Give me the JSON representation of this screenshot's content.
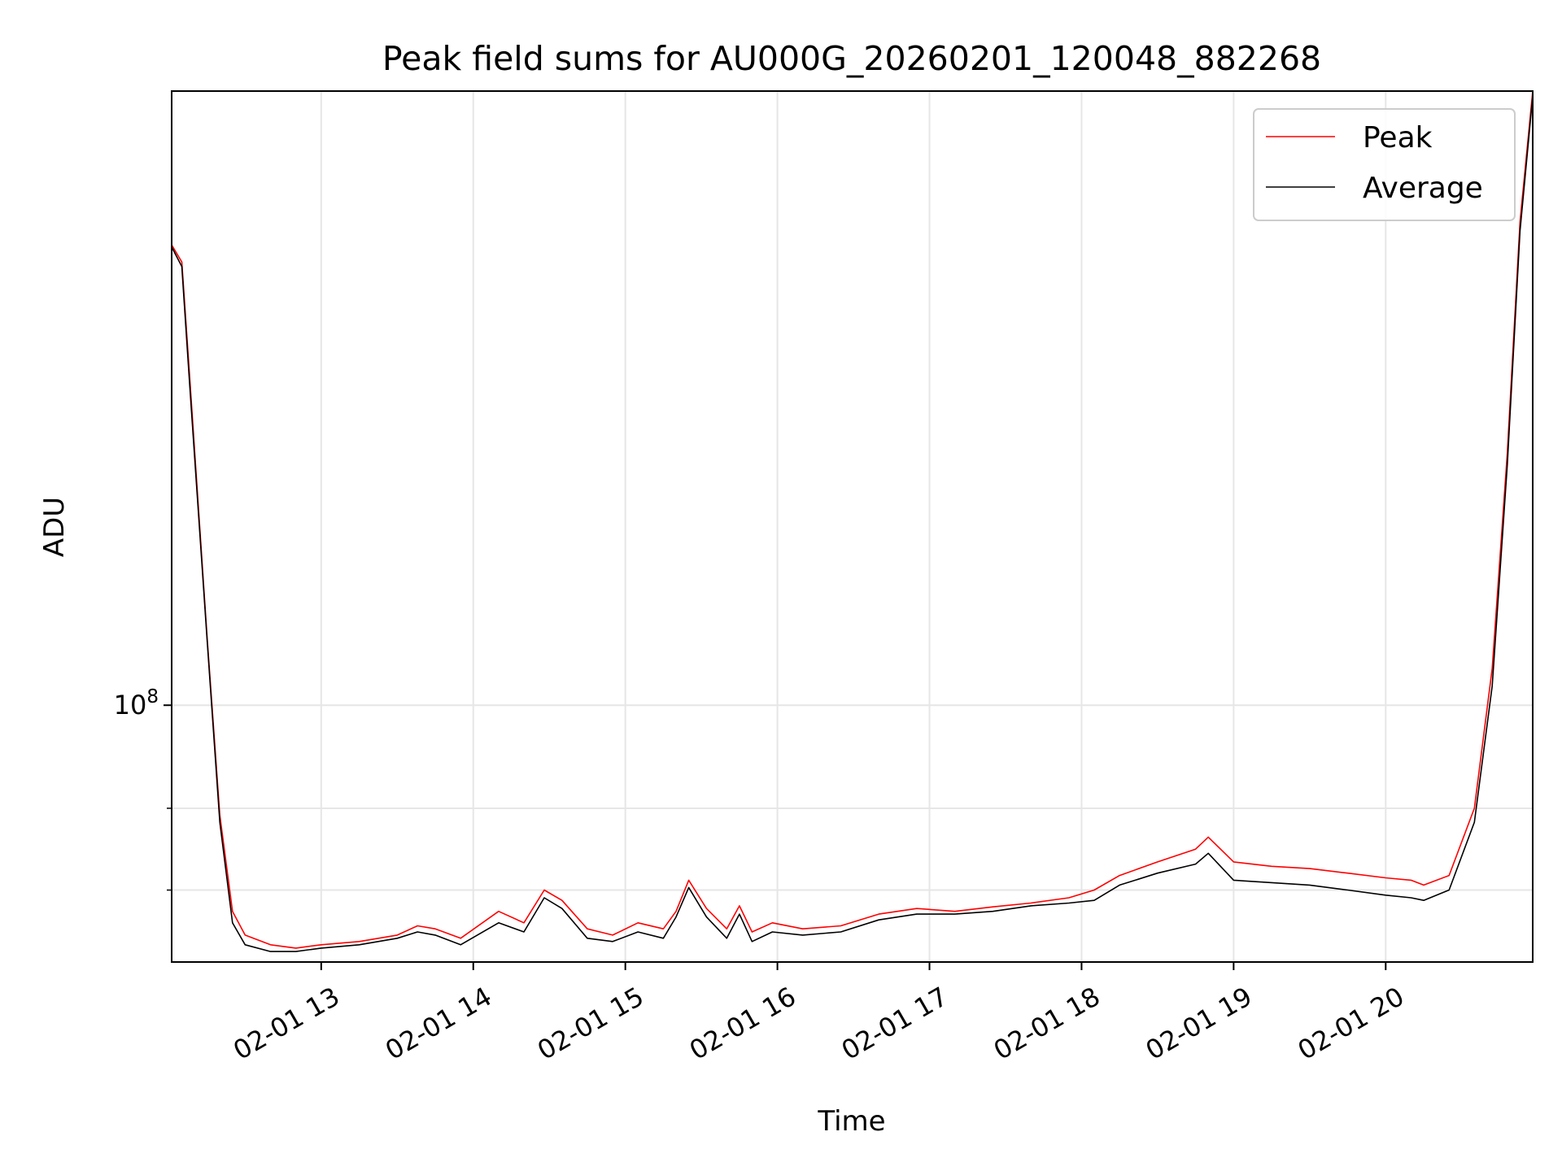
{
  "chart_data": {
    "type": "line",
    "title": "Peak field sums for AU000G_20260201_120048_882268",
    "xlabel": "Time",
    "ylabel": "ADU",
    "y_scale": "log",
    "y_major_tick": {
      "value": 100000000,
      "label_base": "10",
      "label_exp": "8"
    },
    "y_minor_ticks": [
      60000000,
      40000000
    ],
    "ylim": [
      28000000,
      2100000000
    ],
    "xlim": [
      "2026-02-01 12:01:00",
      "2026-02-01 20:58:00"
    ],
    "x_ticks": [
      {
        "time": "2026-02-01 13:00",
        "label": "02-01 13"
      },
      {
        "time": "2026-02-01 14:00",
        "label": "02-01 14"
      },
      {
        "time": "2026-02-01 15:00",
        "label": "02-01 15"
      },
      {
        "time": "2026-02-01 16:00",
        "label": "02-01 16"
      },
      {
        "time": "2026-02-01 17:00",
        "label": "02-01 17"
      },
      {
        "time": "2026-02-01 18:00",
        "label": "02-01 18"
      },
      {
        "time": "2026-02-01 19:00",
        "label": "02-01 19"
      },
      {
        "time": "2026-02-01 20:00",
        "label": "02-01 20"
      }
    ],
    "grid": true,
    "legend_position": "top-right",
    "series": [
      {
        "name": "Peak",
        "color": "#ff0000",
        "x": [
          "2026-02-01 12:01",
          "2026-02-01 12:05",
          "2026-02-01 12:08",
          "2026-02-01 12:15",
          "2026-02-01 12:20",
          "2026-02-01 12:25",
          "2026-02-01 12:30",
          "2026-02-01 12:40",
          "2026-02-01 12:50",
          "2026-02-01 13:00",
          "2026-02-01 13:15",
          "2026-02-01 13:30",
          "2026-02-01 13:38",
          "2026-02-01 13:45",
          "2026-02-01 13:55",
          "2026-02-01 14:10",
          "2026-02-01 14:20",
          "2026-02-01 14:28",
          "2026-02-01 14:35",
          "2026-02-01 14:45",
          "2026-02-01 14:55",
          "2026-02-01 15:05",
          "2026-02-01 15:15",
          "2026-02-01 15:20",
          "2026-02-01 15:25",
          "2026-02-01 15:32",
          "2026-02-01 15:40",
          "2026-02-01 15:45",
          "2026-02-01 15:50",
          "2026-02-01 15:58",
          "2026-02-01 16:10",
          "2026-02-01 16:25",
          "2026-02-01 16:40",
          "2026-02-01 16:55",
          "2026-02-01 17:10",
          "2026-02-01 17:25",
          "2026-02-01 17:40",
          "2026-02-01 17:55",
          "2026-02-01 18:05",
          "2026-02-01 18:15",
          "2026-02-01 18:30",
          "2026-02-01 18:45",
          "2026-02-01 18:50",
          "2026-02-01 19:00",
          "2026-02-01 19:15",
          "2026-02-01 19:30",
          "2026-02-01 19:45",
          "2026-02-01 20:00",
          "2026-02-01 20:10",
          "2026-02-01 20:15",
          "2026-02-01 20:25",
          "2026-02-01 20:35",
          "2026-02-01 20:42",
          "2026-02-01 20:48",
          "2026-02-01 20:53",
          "2026-02-01 20:58"
        ],
        "y": [
          980000000,
          900000000,
          520000000,
          140000000,
          58000000,
          36000000,
          32000000,
          30500000,
          30000000,
          30500000,
          31000000,
          32000000,
          33500000,
          33000000,
          31500000,
          36000000,
          34000000,
          40000000,
          38000000,
          33000000,
          32000000,
          34000000,
          33000000,
          36000000,
          42000000,
          36500000,
          33000000,
          37000000,
          32500000,
          34000000,
          33000000,
          33500000,
          35500000,
          36500000,
          36000000,
          36800000,
          37500000,
          38500000,
          40000000,
          43000000,
          46000000,
          49000000,
          52000000,
          46000000,
          45000000,
          44500000,
          43500000,
          42500000,
          42000000,
          41000000,
          43000000,
          60000000,
          120000000,
          350000000,
          1100000000,
          2100000000
        ]
      },
      {
        "name": "Average",
        "color": "#000000",
        "x": [
          "2026-02-01 12:01",
          "2026-02-01 12:05",
          "2026-02-01 12:08",
          "2026-02-01 12:15",
          "2026-02-01 12:20",
          "2026-02-01 12:25",
          "2026-02-01 12:30",
          "2026-02-01 12:40",
          "2026-02-01 12:50",
          "2026-02-01 13:00",
          "2026-02-01 13:15",
          "2026-02-01 13:30",
          "2026-02-01 13:38",
          "2026-02-01 13:45",
          "2026-02-01 13:55",
          "2026-02-01 14:10",
          "2026-02-01 14:20",
          "2026-02-01 14:28",
          "2026-02-01 14:35",
          "2026-02-01 14:45",
          "2026-02-01 14:55",
          "2026-02-01 15:05",
          "2026-02-01 15:15",
          "2026-02-01 15:20",
          "2026-02-01 15:25",
          "2026-02-01 15:32",
          "2026-02-01 15:40",
          "2026-02-01 15:45",
          "2026-02-01 15:50",
          "2026-02-01 15:58",
          "2026-02-01 16:10",
          "2026-02-01 16:25",
          "2026-02-01 16:40",
          "2026-02-01 16:55",
          "2026-02-01 17:10",
          "2026-02-01 17:25",
          "2026-02-01 17:40",
          "2026-02-01 17:55",
          "2026-02-01 18:05",
          "2026-02-01 18:15",
          "2026-02-01 18:30",
          "2026-02-01 18:45",
          "2026-02-01 18:50",
          "2026-02-01 19:00",
          "2026-02-01 19:15",
          "2026-02-01 19:30",
          "2026-02-01 19:45",
          "2026-02-01 20:00",
          "2026-02-01 20:10",
          "2026-02-01 20:15",
          "2026-02-01 20:25",
          "2026-02-01 20:35",
          "2026-02-01 20:42",
          "2026-02-01 20:48",
          "2026-02-01 20:53",
          "2026-02-01 20:58"
        ],
        "y": [
          970000000,
          880000000,
          500000000,
          138000000,
          56000000,
          34000000,
          30500000,
          29500000,
          29500000,
          30000000,
          30500000,
          31500000,
          32500000,
          32000000,
          30500000,
          34000000,
          32500000,
          38500000,
          36500000,
          31500000,
          31000000,
          32500000,
          31500000,
          35000000,
          40500000,
          35000000,
          31500000,
          35500000,
          31000000,
          32500000,
          32000000,
          32500000,
          34500000,
          35500000,
          35500000,
          36000000,
          37000000,
          37500000,
          38000000,
          41000000,
          43500000,
          45500000,
          48000000,
          42000000,
          41500000,
          41000000,
          40000000,
          39000000,
          38500000,
          38000000,
          40000000,
          56000000,
          110000000,
          330000000,
          1050000000,
          2050000000
        ]
      }
    ]
  }
}
